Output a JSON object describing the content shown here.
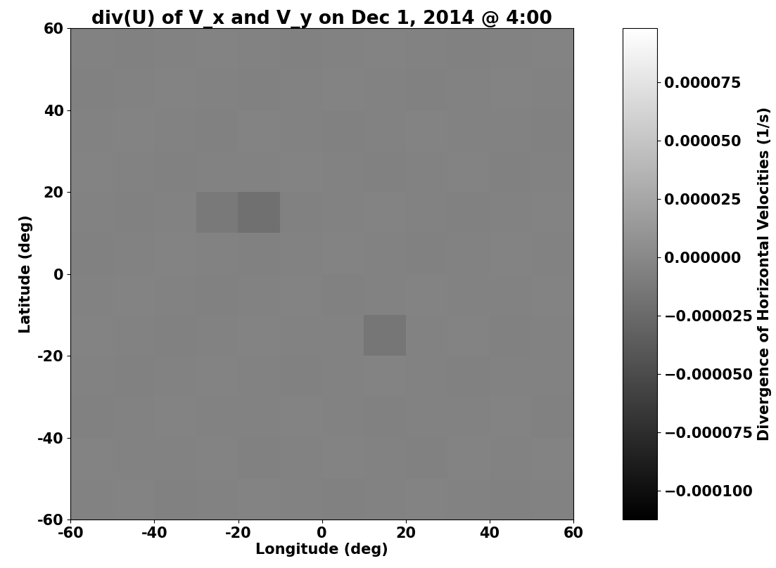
{
  "chart_data": {
    "type": "heatmap",
    "title": "div(U) of V_x and V_y on Dec 1, 2014 @ 4:00",
    "xlabel": "Longitude (deg)",
    "ylabel": "Latitude (deg)",
    "xlim": [
      -60,
      60
    ],
    "ylim": [
      -60,
      60
    ],
    "xticks": [
      -60,
      -40,
      -20,
      0,
      20,
      40,
      60
    ],
    "yticks": [
      -60,
      -40,
      -20,
      0,
      20,
      40,
      60
    ],
    "color": "gray",
    "cells": [
      [
        -5e-06,
        -4e-06,
        -6e-06,
        -5e-06,
        -4e-06,
        -5e-06,
        -6e-06,
        -5e-06,
        -4e-06,
        -5e-06,
        -6e-06,
        -5e-06
      ],
      [
        -4e-06,
        -5e-06,
        -5e-06,
        -4e-06,
        -6e-06,
        -5e-06,
        -4e-06,
        -5e-06,
        -6e-06,
        -4e-06,
        -5e-06,
        -4e-06
      ],
      [
        -6e-06,
        -5e-06,
        -4e-06,
        -5e-06,
        -5e-06,
        -4e-06,
        -5e-06,
        -6e-06,
        -5e-06,
        -5e-06,
        -4e-06,
        -6e-06
      ],
      [
        -5e-06,
        -6e-06,
        -5e-06,
        -4e-06,
        -5e-06,
        -6e-06,
        -5e-06,
        -4e-06,
        -5e-06,
        -6e-06,
        -5e-06,
        -5e-06
      ],
      [
        -4e-06,
        -5e-06,
        -6e-06,
        -5e-06,
        -4e-06,
        -5e-06,
        -5e-06,
        -1.5e-05,
        -5e-06,
        -4e-06,
        -6e-06,
        -5e-06
      ],
      [
        -5e-06,
        -4e-06,
        -5e-06,
        -6e-06,
        -5e-06,
        -4e-06,
        -6e-06,
        -5e-06,
        -4e-06,
        -5e-06,
        -5e-06,
        -4e-06
      ],
      [
        -6e-06,
        -5e-06,
        -4e-06,
        -5e-06,
        -6e-06,
        -5e-06,
        -4e-06,
        -5e-06,
        -6e-06,
        -5e-06,
        -4e-06,
        -5e-06
      ],
      [
        -5e-06,
        -6e-06,
        -5e-06,
        -1.2e-05,
        -2e-05,
        -6e-06,
        -5e-06,
        -4e-06,
        -5e-06,
        -6e-06,
        -5e-06,
        -4e-06
      ],
      [
        -4e-06,
        -5e-06,
        -6e-06,
        -5e-06,
        -5e-06,
        -4e-06,
        -5e-06,
        -6e-06,
        -5e-06,
        -4e-06,
        -6e-06,
        -5e-06
      ],
      [
        -5e-06,
        -4e-06,
        -5e-06,
        -6e-06,
        -4e-06,
        -5e-06,
        -6e-06,
        -5e-06,
        -4e-06,
        -5e-06,
        -5e-06,
        -6e-06
      ],
      [
        -6e-06,
        -5e-06,
        -4e-06,
        -5e-06,
        -6e-06,
        -5e-06,
        -4e-06,
        -5e-06,
        -6e-06,
        -5e-06,
        -4e-06,
        -5e-06
      ],
      [
        -5e-06,
        -6e-06,
        -5e-06,
        -4e-06,
        -5e-06,
        -6e-06,
        -5e-06,
        -4e-06,
        -5e-06,
        -6e-06,
        -5e-06,
        -4e-06
      ]
    ],
    "colorbar": {
      "label": "Divergence of Horizontal Velocities (1/s)",
      "range": [
        -0.0001125,
        9.82e-05
      ],
      "ticks": [
        {
          "value": -0.0001,
          "label": "−0.000100"
        },
        {
          "value": -7.5e-05,
          "label": "−0.000075"
        },
        {
          "value": -5e-05,
          "label": "−0.000050"
        },
        {
          "value": -2.5e-05,
          "label": "−0.000025"
        },
        {
          "value": 0,
          "label": "0.000000"
        },
        {
          "value": 2.5e-05,
          "label": "0.000025"
        },
        {
          "value": 5e-05,
          "label": "0.000050"
        },
        {
          "value": 7.5e-05,
          "label": "0.000075"
        }
      ]
    }
  }
}
